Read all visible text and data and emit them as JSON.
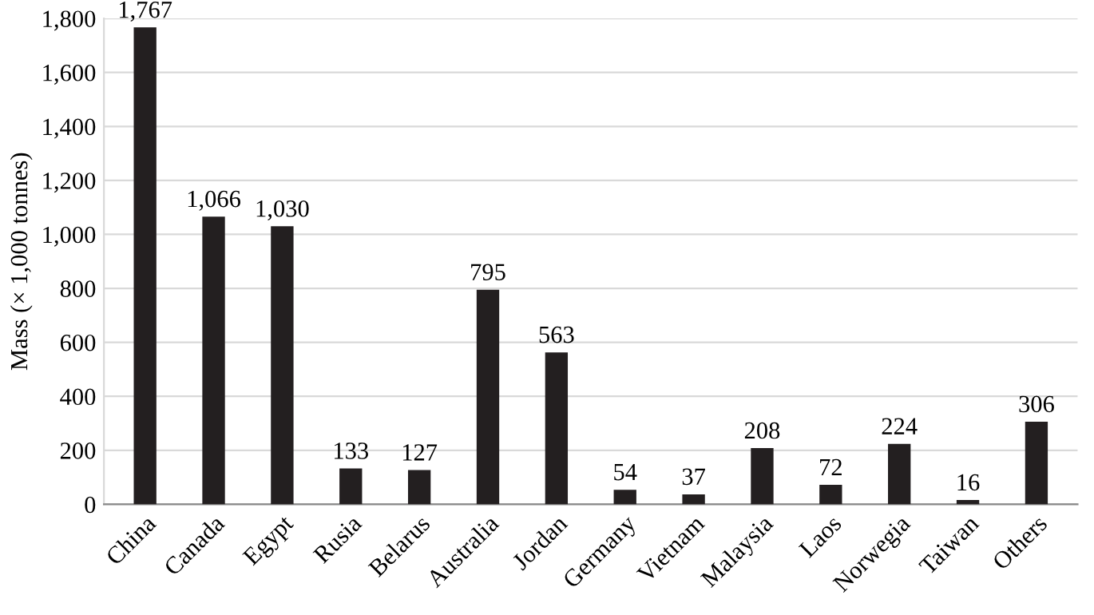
{
  "chart_data": {
    "type": "bar",
    "ylabel": "Mass (× 1,000 tonnes)",
    "categories": [
      "China",
      "Canada",
      "Egypt",
      "Rusia",
      "Belarus",
      "Australia",
      "Jordan",
      "Germany",
      "Vietnam",
      "Malaysia",
      "Laos",
      "Norwegia",
      "Taiwan",
      "Others"
    ],
    "values": [
      1767,
      1066,
      1030,
      133,
      127,
      795,
      563,
      54,
      37,
      208,
      72,
      224,
      16,
      306
    ],
    "value_labels": [
      "1,767",
      "1,066",
      "1,030",
      "133",
      "127",
      "795",
      "563",
      "54",
      "37",
      "208",
      "72",
      "224",
      "16",
      "306"
    ],
    "color": "#231f20",
    "ylim": [
      0,
      1800
    ],
    "yticks": [
      0,
      200,
      400,
      600,
      800,
      {
        "value": 1000,
        "label": "1,000"
      },
      {
        "value": 1200,
        "label": "1,200"
      },
      {
        "value": 1400,
        "label": "1,400"
      },
      {
        "value": 1600,
        "label": "1,600"
      },
      {
        "value": 1800,
        "label": "1,800"
      }
    ],
    "grid": "y"
  }
}
